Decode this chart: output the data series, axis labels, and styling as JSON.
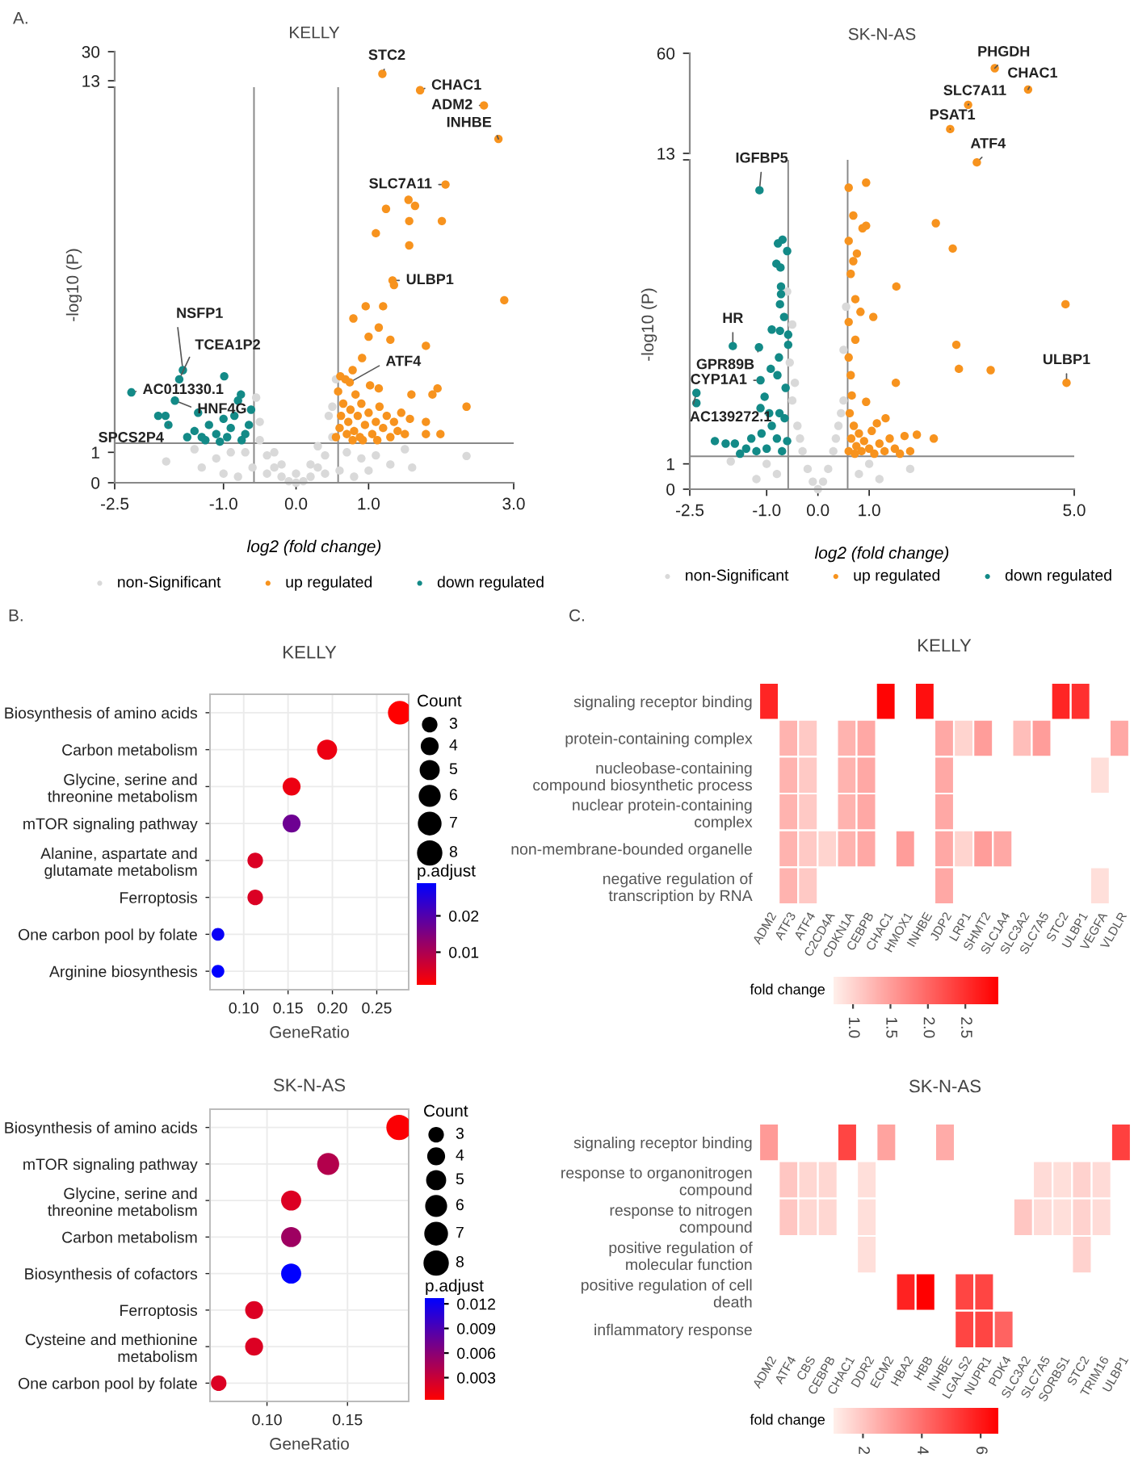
{
  "chart_data": [
    {
      "type": "scatter",
      "title": "KELLY",
      "xlim": [
        -2.5,
        3.0
      ],
      "ylim": [
        13,
        30
      ],
      "yticks": [
        13,
        30
      ],
      "tick_labels": "y",
      "marker": "circle",
      "series": [
        {
          "color": "#f7931e",
          "x": [
            1.19
          ],
          "values": [
            17
          ]
        }
      ],
      "annotations": [
        "A.",
        {
          "text": "STC2",
          "x": 1.19,
          "y": 17
        }
      ]
    },
    {
      "type": "scatter",
      "xlabel": "log2 (fold change)",
      "ylabel": "-log10 (P)",
      "xlim": [
        -2.5,
        3.0
      ],
      "ylim": [
        0,
        13
      ],
      "xticks": [
        -2.5,
        {
          "value": -1.0,
          "label": "-1.0"
        },
        {
          "value": 0.0,
          "label": "0.0"
        },
        {
          "value": 1.0,
          "label": "1.0"
        },
        {
          "value": 3.0,
          "label": "3.0"
        }
      ],
      "yticks": [
        0,
        1,
        {
          "value": 13,
          "label": null
        }
      ],
      "marker": "circle",
      "legend": "bottom",
      "series": [
        {
          "name": "non-Significant",
          "color": "#d9d9d9",
          "x": [
            0.0,
            0.1,
            -0.1,
            0.2,
            -0.2,
            0.3,
            -0.3,
            0.4,
            -0.4,
            0.5,
            -0.5,
            0.5,
            -0.55,
            0.45,
            -0.5,
            0.55,
            0.7,
            -0.7,
            0.9,
            -0.9,
            1.1,
            -1.1,
            1.3,
            -1.3,
            1.6,
            0.4,
            -0.4,
            0.6,
            -0.6,
            0.8,
            -0.8,
            -1.79,
            2.35,
            0.3,
            -0.3,
            1.5,
            -1.4,
            0.0,
            0.2,
            -0.2,
            1.0,
            -1.0
          ],
          "values": [
            0.0,
            0.05,
            0.05,
            0.2,
            0.2,
            0.5,
            0.5,
            0.9,
            0.9,
            1.5,
            1.4,
            2.5,
            2.8,
            2.2,
            2.0,
            3.4,
            1.0,
            1.0,
            0.8,
            1.0,
            0.9,
            0.8,
            0.6,
            0.5,
            0.5,
            0.3,
            0.3,
            0.4,
            0.5,
            0.2,
            0.2,
            0.7,
            0.88,
            1.2,
            1.0,
            1.1,
            1.1,
            0.3,
            0.6,
            0.6,
            0.4,
            0.3
          ]
        },
        {
          "name": "up regulated",
          "color": "#f7931e",
          "x": [
            1.71,
            2.59,
            2.79,
            2.06,
            1.33,
            0.74,
            1.24,
            1.55,
            1.64,
            1.56,
            2.01,
            1.1,
            1.56,
            1.35,
            2.87,
            0.96,
            1.2,
            0.79,
            1.14,
            1.0,
            1.3,
            1.79,
            0.91,
            0.78,
            0.61,
            1.14,
            1.59,
            1.95,
            1.88,
            2.35,
            1.57,
            1.79,
            1.99,
            1.79,
            0.55,
            0.6,
            0.62,
            0.65,
            0.58,
            0.7,
            0.72,
            0.75,
            0.8,
            0.82,
            0.85,
            0.88,
            0.9,
            0.95,
            1.0,
            1.02,
            1.05,
            1.1,
            1.15,
            1.2,
            1.25,
            1.3,
            1.35,
            1.4,
            1.45,
            1.5,
            0.68,
            0.78,
            0.92,
            1.12
          ],
          "values": [
            12.9,
            12.4,
            11.3,
            9.8,
            6.65,
            3.3,
            9.0,
            9.3,
            9.1,
            8.6,
            8.6,
            8.2,
            7.8,
            6.5,
            6.0,
            5.8,
            5.8,
            5.4,
            5.1,
            4.8,
            4.7,
            4.5,
            4.1,
            3.7,
            3.5,
            3.1,
            2.9,
            3.1,
            2.9,
            2.5,
            2.1,
            2.0,
            1.6,
            1.6,
            1.5,
            1.8,
            2.2,
            2.6,
            3.0,
            1.6,
            2.0,
            2.4,
            1.7,
            2.9,
            2.2,
            1.5,
            2.6,
            1.9,
            2.3,
            3.2,
            1.6,
            2.0,
            2.5,
            1.8,
            2.2,
            1.5,
            2.0,
            1.7,
            2.3,
            1.6,
            3.4,
            1.4,
            1.4,
            1.4
          ]
        },
        {
          "name": "down regulated",
          "color": "#138a87",
          "x": [
            -2.27,
            -1.56,
            -1.61,
            -1.67,
            -1.76,
            -0.99,
            -0.76,
            -1.9,
            -1.8,
            -1.35,
            -0.8,
            -1.4,
            -1.3,
            -1.2,
            -1.1,
            -1.0,
            -0.95,
            -0.9,
            -0.85,
            -0.7,
            -0.65,
            -0.62,
            -1.25,
            -1.05,
            -0.75,
            -1.5
          ],
          "values": [
            2.97,
            3.7,
            3.4,
            2.7,
            1.9,
            3.5,
            2.9,
            2.2,
            2.2,
            2.3,
            2.7,
            1.7,
            1.5,
            1.9,
            1.6,
            2.1,
            1.5,
            1.8,
            2.2,
            1.6,
            1.9,
            2.4,
            1.4,
            1.35,
            1.4,
            1.5
          ]
        }
      ],
      "ref_lines": [
        {
          "axis": "x",
          "value": -0.58
        },
        {
          "axis": "x",
          "value": 0.58
        },
        {
          "axis": "y",
          "value": 1.3
        }
      ],
      "annotations": [
        {
          "text": "CHAC1",
          "x": 1.71,
          "y": 12.9
        },
        {
          "text": "ADM2",
          "x": 2.59,
          "y": 12.4
        },
        {
          "text": "INHBE",
          "x": 2.79,
          "y": 11.3
        },
        {
          "text": "SLC7A11",
          "x": 2.06,
          "y": 9.8
        },
        {
          "text": "ULBP1",
          "x": 1.33,
          "y": 6.65
        },
        {
          "text": "ATF4",
          "x": 0.74,
          "y": 3.3
        },
        {
          "text": "AC011330.1",
          "x": -2.27,
          "y": 2.97
        },
        {
          "text": "NSFP1",
          "x": -1.56,
          "y": 3.7
        },
        {
          "text": "TCEA1P2",
          "x": -1.61,
          "y": 3.4
        },
        {
          "text": "HNF4G",
          "x": -1.67,
          "y": 2.7
        },
        {
          "text": "SPCS2P4",
          "x": -1.76,
          "y": 1.9
        }
      ]
    },
    {
      "type": "scatter",
      "title": "SK-N-AS",
      "xlim": [
        -2.5,
        5.0
      ],
      "ylim": [
        13,
        60
      ],
      "yticks": [
        13,
        60
      ],
      "tick_labels": "y",
      "marker": "circle",
      "series": [
        {
          "color": "#f7931e",
          "x": [
            3.45,
            4.1,
            2.93,
            2.58
          ],
          "values": [
            53,
            43,
            35.8,
            24.4
          ]
        }
      ],
      "annotations": [
        {
          "text": "PHGDH",
          "x": 3.45,
          "y": 53
        },
        {
          "text": "CHAC1",
          "x": 4.1,
          "y": 43
        },
        {
          "text": "SLC7A11",
          "x": 2.93,
          "y": 35.8
        },
        {
          "text": "PSAT1",
          "x": 2.58,
          "y": 24.4
        }
      ]
    },
    {
      "type": "scatter",
      "xlabel": "log2 (fold change)",
      "ylabel": "-log10 (P)",
      "xlim": [
        -2.5,
        5.0
      ],
      "ylim": [
        0,
        13
      ],
      "xticks": [
        -2.5,
        {
          "value": -1.0,
          "label": "-1.0"
        },
        {
          "value": 0.0,
          "label": "0.0"
        },
        {
          "value": 1.0,
          "label": "1.0"
        },
        {
          "value": 5.0,
          "label": "5.0"
        }
      ],
      "yticks": [
        0,
        1,
        {
          "value": 13,
          "label": null
        }
      ],
      "marker": "circle",
      "legend": "bottom",
      "series": [
        {
          "name": "non-Significant",
          "color": "#d9d9d9",
          "x": [
            0.0,
            0.1,
            -0.1,
            0.2,
            -0.2,
            0.3,
            -0.3,
            0.4,
            -0.4,
            0.5,
            -0.5,
            -0.55,
            -0.5,
            0.5,
            0.55,
            -0.6,
            0.8,
            -0.8,
            1.2,
            -1.2,
            -1.7,
            1.8,
            0.35,
            -0.35,
            0.45,
            -0.45,
            1.0,
            -1.0
          ],
          "values": [
            0.0,
            0.3,
            0.3,
            0.8,
            0.8,
            1.5,
            1.5,
            2.5,
            2.5,
            3.5,
            3.5,
            5.0,
            6.5,
            5.5,
            7.2,
            7.8,
            0.6,
            0.6,
            0.4,
            0.4,
            1.1,
            0.8,
            2.0,
            2.0,
            3.0,
            4.2,
            1.0,
            1.0
          ]
        },
        {
          "name": "up regulated",
          "color": "#f7931e",
          "x": [
            3.1,
            4.85,
            0.6,
            0.94,
            0.69,
            0.94,
            0.87,
            2.3,
            0.6,
            2.63,
            0.76,
            0.69,
            0.64,
            0.73,
            1.53,
            4.83,
            0.83,
            1.08,
            0.6,
            0.73,
            2.7,
            2.75,
            3.37,
            1.52,
            0.6,
            0.64,
            0.6,
            0.65,
            0.7,
            0.62,
            0.75,
            0.8,
            0.85,
            0.9,
            1.0,
            1.05,
            1.1,
            1.2,
            1.3,
            1.32,
            1.4,
            1.5,
            1.69,
            1.8,
            1.93,
            2.26,
            0.94,
            0.66,
            1.15,
            0.72,
            1.6
          ],
          "values": [
            12.9,
            4.2,
            11.9,
            12.1,
            10.8,
            10.4,
            10.3,
            10.5,
            9.8,
            9.5,
            9.3,
            9.0,
            8.5,
            7.5,
            8.0,
            7.3,
            7.0,
            6.8,
            6.6,
            5.9,
            5.7,
            4.75,
            4.7,
            4.2,
            5.2,
            4.5,
            1.5,
            2.0,
            2.5,
            3.0,
            1.7,
            2.2,
            1.5,
            1.9,
            1.6,
            2.3,
            1.4,
            1.8,
            1.5,
            2.8,
            2.0,
            1.6,
            2.1,
            1.5,
            2.15,
            2.0,
            3.45,
            3.7,
            2.6,
            1.4,
            1.4
          ]
        },
        {
          "name": "down regulated",
          "color": "#138a87",
          "x": [
            -1.14,
            -1.66,
            -1.15,
            -1.12,
            -2.37,
            -0.69,
            -0.78,
            -0.6,
            -0.81,
            -0.73,
            -0.72,
            -0.72,
            -0.74,
            -0.66,
            -0.74,
            -0.9,
            -0.58,
            -0.58,
            -0.76,
            -0.92,
            -0.79,
            -0.63,
            -1.04,
            -1.12,
            -2.37,
            -2.01,
            -1.8,
            -1.62,
            -1.52,
            -0.7,
            -0.8,
            -0.9,
            -1.0,
            -1.1,
            -1.2,
            -1.3,
            -0.65,
            -0.75,
            -1.4,
            -0.95,
            -0.6
          ],
          "values": [
            11.8,
            5.65,
            5.6,
            4.3,
            3.8,
            9.85,
            9.7,
            9.4,
            8.9,
            8.75,
            8.0,
            7.7,
            7.3,
            6.8,
            6.25,
            6.3,
            6.1,
            5.7,
            5.2,
            4.75,
            4.5,
            4.0,
            3.65,
            3.2,
            3.4,
            1.9,
            1.8,
            1.8,
            1.4,
            1.5,
            2.0,
            2.5,
            1.6,
            2.2,
            1.5,
            2.0,
            2.8,
            3.0,
            1.6,
            3.0,
            1.9
          ]
        }
      ],
      "ref_lines": [
        {
          "axis": "x",
          "value": -0.58
        },
        {
          "axis": "x",
          "value": 0.58
        },
        {
          "axis": "y",
          "value": 1.3
        }
      ],
      "annotations": [
        {
          "text": "ATF4",
          "x": 3.1,
          "y": 12.9
        },
        {
          "text": "IGFBP5",
          "x": -1.14,
          "y": 11.8
        },
        {
          "text": "ULBP1",
          "x": 4.85,
          "y": 4.2
        },
        {
          "text": "HR",
          "x": -1.66,
          "y": 5.65
        },
        {
          "text": "GPR89B",
          "x": -1.15,
          "y": 5.6
        },
        {
          "text": "CYP1A1",
          "x": -1.12,
          "y": 4.3
        },
        {
          "text": "AC139272.1",
          "x": -2.37,
          "y": 3.8
        }
      ]
    },
    {
      "type": "bubble",
      "orientation": "horizontal",
      "title": "KELLY",
      "xlabel": "GeneRatio",
      "categories": [
        "Biosynthesis of amino acids",
        "Carbon metabolism",
        "Glycine, serine and\nthreonine metabolism",
        "mTOR signaling pathway",
        "Alanine, aspartate and\nglutamate metabolism",
        "Ferroptosis",
        "One carbon pool by folate",
        "Arginine biosynthesis"
      ],
      "values": [
        0.276,
        0.194,
        0.154,
        0.154,
        0.113,
        0.113,
        0.071,
        0.071
      ],
      "sizes": [
        7,
        5,
        4,
        4,
        3,
        3,
        2,
        2
      ],
      "size_legend": [
        3,
        4,
        5,
        6,
        7,
        8
      ],
      "legend_title": "Count",
      "cvalues": [
        0.001,
        0.003,
        0.003,
        0.017,
        0.005,
        0.005,
        0.028,
        0.029
      ],
      "clim": [
        0.001,
        0.029
      ],
      "cticks": [
        0.01,
        0.02
      ],
      "clabel": "p.adjust",
      "xlim": [
        0.062,
        0.286
      ],
      "xticks": [
        {
          "value": 0.1,
          "label": "0.10"
        },
        0.15,
        {
          "value": 0.2,
          "label": "0.20"
        },
        0.25
      ],
      "grid": true,
      "annotations": [
        "B."
      ]
    },
    {
      "type": "heatmap",
      "title": "KELLY",
      "categories": [
        "ADM2",
        "ATF3",
        "ATF4",
        "C2CD4A",
        "CDKN1A",
        "CEBPB",
        "CHAC1",
        "HMOX1",
        "INHBE",
        "JDP2",
        "LRP1",
        "SHMT2",
        "SLC1A4",
        "SLC3A2",
        "SLC7A5",
        "STC2",
        "ULBP1",
        "VEGFA",
        "VLDLR"
      ],
      "y_categories": [
        "signaling receptor binding",
        "protein-containing complex",
        "nucleobase-containing\ncompound biosynthetic process",
        "nuclear protein-containing\ncomplex",
        "non-membrane-bounded organelle",
        "negative regulation of\ntranscription by RNA"
      ],
      "cells": [
        [
          2.6,
          null,
          null,
          null,
          null,
          null,
          2.9,
          null,
          2.8,
          null,
          null,
          null,
          null,
          null,
          null,
          2.6,
          2.5,
          null,
          null
        ],
        [
          null,
          1.3,
          1.1,
          null,
          1.3,
          1.4,
          null,
          null,
          null,
          1.4,
          1.0,
          1.5,
          null,
          1.2,
          1.5,
          null,
          null,
          null,
          1.4
        ],
        [
          null,
          1.3,
          1.1,
          null,
          1.3,
          1.4,
          null,
          null,
          null,
          1.4,
          null,
          null,
          null,
          null,
          null,
          null,
          null,
          0.9,
          null
        ],
        [
          null,
          1.3,
          1.1,
          null,
          1.3,
          1.4,
          null,
          null,
          null,
          1.4,
          null,
          null,
          null,
          null,
          null,
          null,
          null,
          null,
          null
        ],
        [
          null,
          1.3,
          1.1,
          1.0,
          1.3,
          1.4,
          null,
          1.5,
          null,
          1.4,
          1.0,
          1.5,
          1.4,
          null,
          null,
          null,
          null,
          null,
          null
        ],
        [
          null,
          1.3,
          1.1,
          null,
          null,
          null,
          null,
          null,
          null,
          1.4,
          null,
          null,
          null,
          null,
          null,
          null,
          null,
          0.9,
          null
        ]
      ],
      "clim": [
        0.74,
        2.94
      ],
      "cticks": [
        {
          "value": 1.0,
          "label": "1.0"
        },
        1.5,
        {
          "value": 2.0,
          "label": "2.0"
        },
        2.5
      ],
      "clabel": "fold change",
      "annotations": [
        "C."
      ]
    },
    {
      "type": "bubble",
      "orientation": "horizontal",
      "title": "SK-N-AS",
      "xlabel": "GeneRatio",
      "categories": [
        "Biosynthesis of amino acids",
        "mTOR signaling pathway",
        "Glycine, serine and\nthreonine metabolism",
        "Carbon metabolism",
        "Biosynthesis of cofactors",
        "Ferroptosis",
        "Cysteine and methionine\nmetabolism",
        "One carbon pool by folate"
      ],
      "values": [
        0.182,
        0.138,
        0.115,
        0.115,
        0.115,
        0.092,
        0.092,
        0.07
      ],
      "sizes": [
        8,
        6,
        5,
        5,
        5,
        4,
        4,
        3
      ],
      "size_legend": [
        3,
        4,
        5,
        6,
        7,
        8
      ],
      "legend_title": "Count",
      "cvalues": [
        0.0005,
        0.004,
        0.002,
        0.005,
        0.0127,
        0.002,
        0.002,
        0.002
      ],
      "clim": [
        0.0003,
        0.0127
      ],
      "cticks": [
        0.003,
        0.006,
        0.009,
        0.012
      ],
      "clabel": "p.adjust",
      "xlim": [
        0.0646,
        0.188
      ],
      "xticks": [
        {
          "value": 0.1,
          "label": "0.10"
        },
        0.15
      ],
      "grid": true
    },
    {
      "type": "heatmap",
      "title": "SK-N-AS",
      "categories": [
        "ADM2",
        "ATF4",
        "CBS",
        "CEBPB",
        "CHAC1",
        "DDR2",
        "ECM2",
        "HBA2",
        "HBB",
        "INHBE",
        "LGALS2",
        "NUPR1",
        "PDK4",
        "SLC3A2",
        "SLC7A5",
        "SORBS1",
        "STC2",
        "TRIM16",
        "ULBP1"
      ],
      "y_categories": [
        "signaling receptor binding",
        "response to organonitrogen\ncompound",
        "response to nitrogen\ncompound",
        "positive regulation of\nmolecular function",
        "positive regulation of cell\ndeath",
        "inflammatory response"
      ],
      "cells": [
        [
          3.0,
          null,
          null,
          null,
          5.0,
          null,
          2.8,
          null,
          null,
          2.6,
          null,
          null,
          null,
          null,
          null,
          null,
          null,
          null,
          5.1
        ],
        [
          null,
          2.0,
          1.6,
          1.6,
          null,
          1.4,
          null,
          null,
          null,
          null,
          null,
          null,
          null,
          null,
          1.5,
          1.4,
          1.7,
          1.5,
          null
        ],
        [
          null,
          2.0,
          1.6,
          1.6,
          null,
          1.4,
          null,
          null,
          null,
          null,
          null,
          null,
          null,
          2.0,
          1.5,
          1.4,
          1.7,
          1.5,
          null
        ],
        [
          null,
          null,
          null,
          null,
          null,
          1.4,
          null,
          null,
          null,
          null,
          null,
          null,
          null,
          null,
          null,
          null,
          1.7,
          null,
          null
        ],
        [
          null,
          null,
          null,
          null,
          null,
          null,
          null,
          5.8,
          6.6,
          null,
          5.0,
          5.0,
          null,
          null,
          null,
          null,
          null,
          null,
          null
        ],
        [
          null,
          null,
          null,
          null,
          null,
          null,
          null,
          null,
          null,
          null,
          5.0,
          5.0,
          4.3,
          null,
          null,
          null,
          null,
          null,
          null
        ]
      ],
      "clim": [
        1.0,
        6.6
      ],
      "cticks": [
        2,
        4,
        6
      ],
      "clabel": "fold change"
    }
  ]
}
